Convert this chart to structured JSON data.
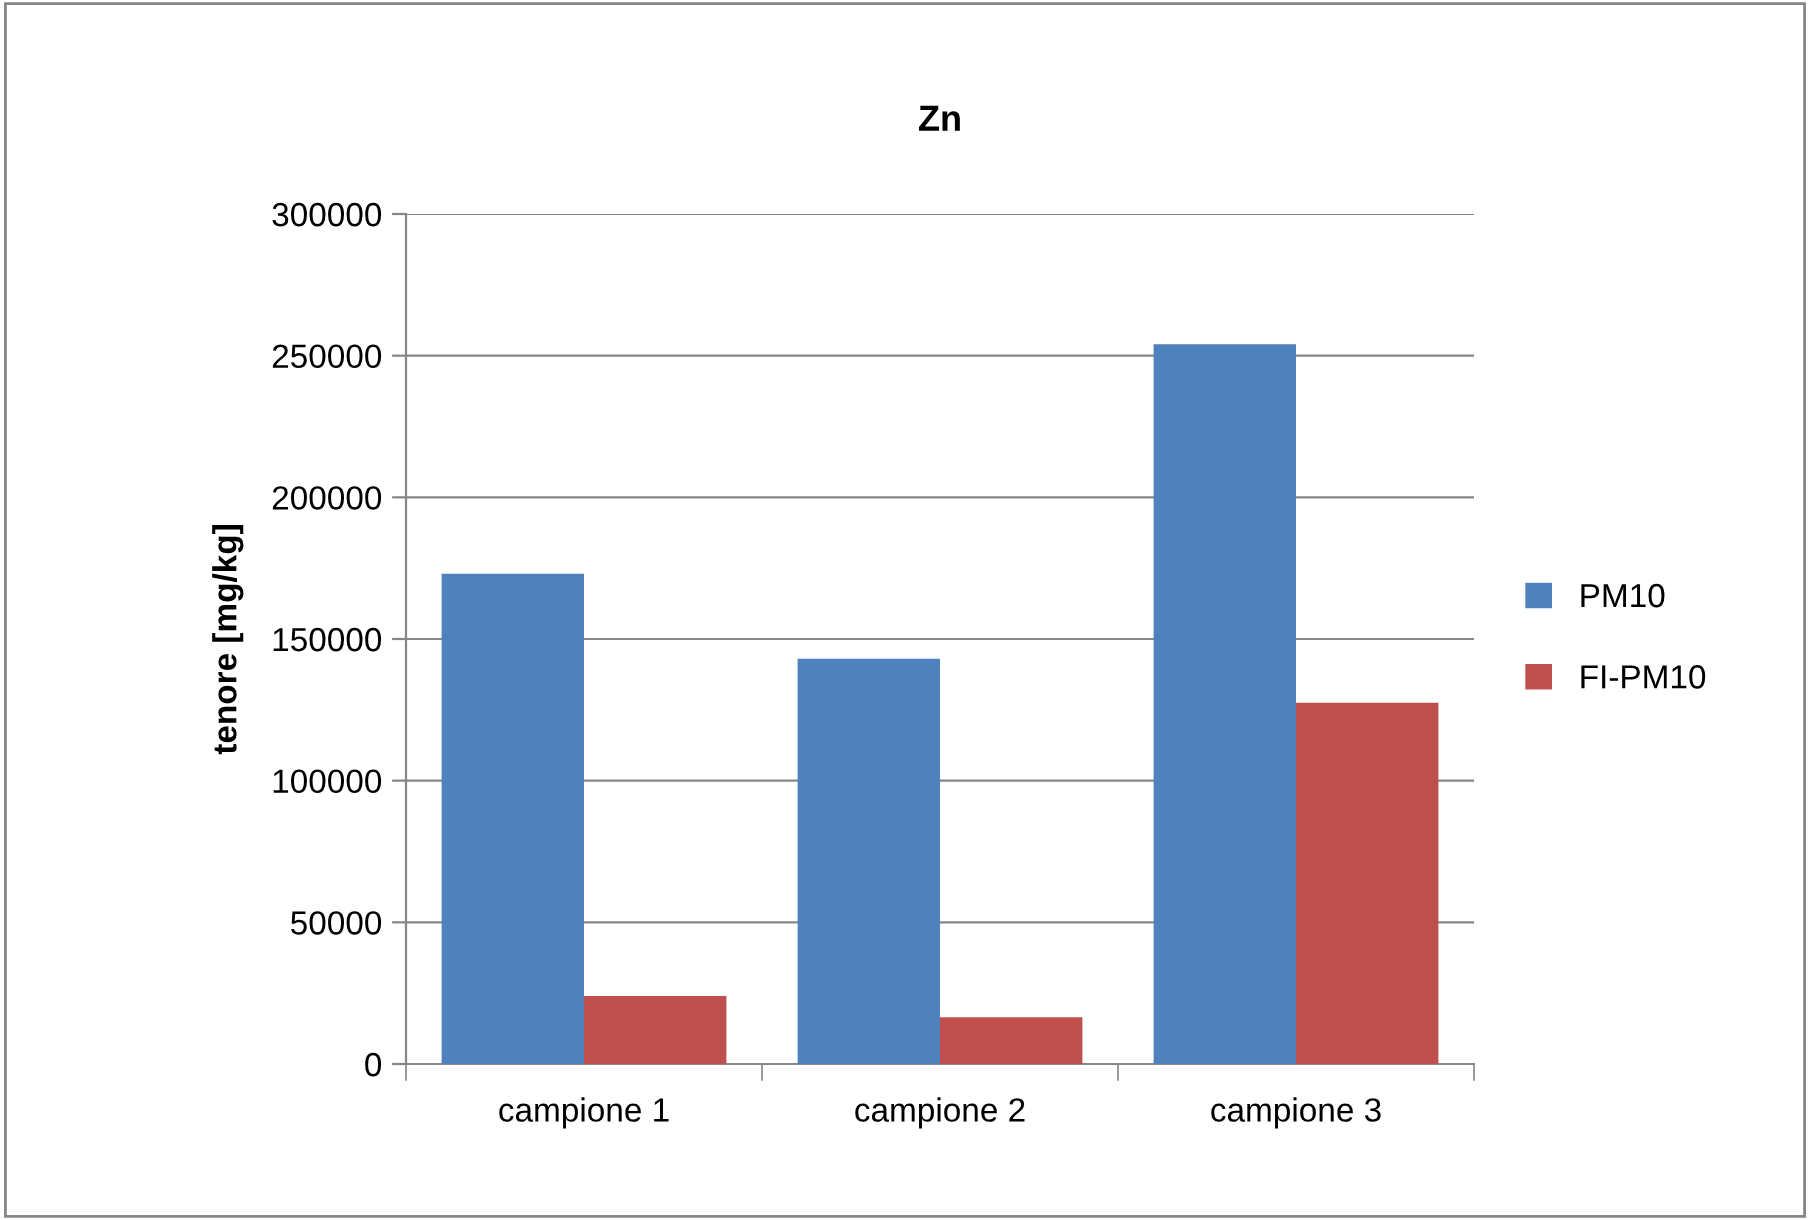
{
  "chart_data": {
    "type": "bar",
    "title": "Zn",
    "ylabel": "tenore [mg/kg]",
    "categories": [
      "campione 1",
      "campione 2",
      "campione 3"
    ],
    "series": [
      {
        "name": "PM10",
        "color": "#4f81bd",
        "values": [
          173000,
          143000,
          254000
        ]
      },
      {
        "name": "FI-PM10",
        "color": "#c0504d",
        "values": [
          24000,
          16500,
          127500
        ]
      }
    ],
    "ylim": [
      0,
      300000
    ],
    "yticks": [
      0,
      50000,
      100000,
      150000,
      200000,
      250000,
      300000
    ],
    "grid": "y",
    "legend": "right"
  }
}
